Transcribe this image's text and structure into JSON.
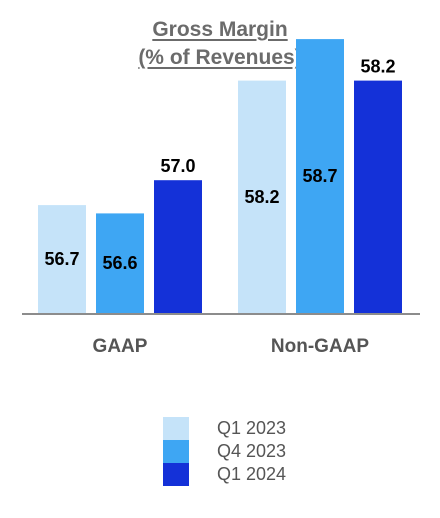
{
  "chart_data": {
    "type": "bar",
    "title": "Gross Margin",
    "subtitle": "(% of Revenues)",
    "categories": [
      "GAAP",
      "Non-GAAP"
    ],
    "series": [
      {
        "name": "Q1 2023",
        "color": "#c5e3f9",
        "values": [
          56.7,
          58.2
        ]
      },
      {
        "name": "Q4 2023",
        "color": "#3ea6f3",
        "values": [
          56.6,
          58.7
        ]
      },
      {
        "name": "Q1 2024",
        "color": "#1431d8",
        "values": [
          57.0,
          58.2
        ]
      }
    ],
    "xlabel": "",
    "ylabel": "",
    "legend_position": "bottom",
    "grid": false
  }
}
